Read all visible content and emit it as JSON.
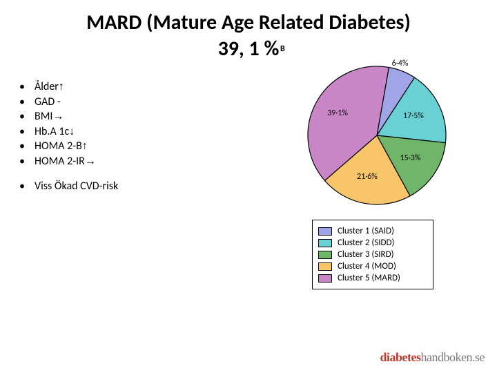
{
  "title": {
    "line1": "MARD (Mature Age Related Diabetes)",
    "line2": "39, 1 %",
    "fontsize": 30,
    "color": "#000000"
  },
  "panel_label": "B",
  "bullets": {
    "fontsize": 16,
    "items": [
      {
        "text": "Ålder ",
        "arrow": "↑"
      },
      {
        "text": "GAD  -",
        "arrow": ""
      },
      {
        "text": "BMI ",
        "arrow": "→"
      },
      {
        "text": "Hb.A 1c ",
        "arrow": "↓"
      },
      {
        "text": "HOMA 2-B ",
        "arrow": "↑"
      },
      {
        "text": "HOMA 2-IR ",
        "arrow": "→"
      }
    ],
    "extra": {
      "text": "Viss Ökad CVD-risk"
    }
  },
  "pie": {
    "type": "pie",
    "radius": 100,
    "stroke": "#000000",
    "stroke_width": 1.2,
    "label_fontsize": 12,
    "label_color": "#000000",
    "slices": [
      {
        "name": "Cluster 1 (SAID)",
        "value": 6.4,
        "label": "6·4%",
        "color": "#9fa5e6"
      },
      {
        "name": "Cluster 2 (SIDD)",
        "value": 17.5,
        "label": "17·5%",
        "color": "#69d0d4"
      },
      {
        "name": "Cluster 3 (SIRD)",
        "value": 15.3,
        "label": "15·3%",
        "color": "#6fb56a"
      },
      {
        "name": "Cluster 4 (MOD)",
        "value": 21.6,
        "label": "21·6%",
        "color": "#f9c56a"
      },
      {
        "name": "Cluster 5 (MARD)",
        "value": 39.1,
        "label": "39·1%",
        "color": "#c986c6"
      }
    ],
    "start_angle_deg": -80
  },
  "legend": {
    "border_color": "#000000",
    "fontsize": 13,
    "items": [
      {
        "swatch": "#9fa5e6",
        "text": "Cluster 1 (SAID)"
      },
      {
        "swatch": "#69d0d4",
        "text": "Cluster 2 (SIDD)"
      },
      {
        "swatch": "#6fb56a",
        "text": "Cluster 3 (SIRD)"
      },
      {
        "swatch": "#f9c56a",
        "text": "Cluster 4 (MOD)"
      },
      {
        "swatch": "#c986c6",
        "text": "Cluster 5 (MARD)"
      }
    ]
  },
  "footer": {
    "part1": "diabetes",
    "part2": "handboken.se",
    "color1": "#c0392b",
    "color2": "#7a7a7a"
  }
}
